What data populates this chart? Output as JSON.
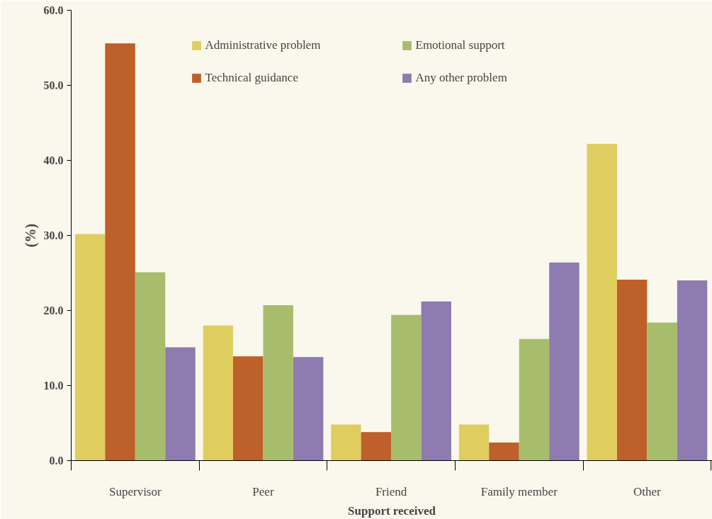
{
  "chart_data": {
    "type": "bar",
    "xlabel": "Support received",
    "ylabel": "(%)",
    "categories": [
      "Supervisor",
      "Peer",
      "Friend",
      "Family member",
      "Other"
    ],
    "series": [
      {
        "name": "Administrative problem",
        "color": "#dfcd5f",
        "values": [
          30.2,
          18.0,
          4.8,
          4.8,
          42.2
        ]
      },
      {
        "name": "Technical guidance",
        "color": "#bd6029",
        "values": [
          55.6,
          13.9,
          3.8,
          2.4,
          24.1
        ]
      },
      {
        "name": "Emotional support",
        "color": "#a7bd6c",
        "values": [
          25.1,
          20.7,
          19.4,
          16.2,
          18.4
        ]
      },
      {
        "name": "Any other problem",
        "color": "#8e7bb0",
        "values": [
          15.1,
          13.8,
          21.2,
          26.4,
          24.0
        ]
      }
    ],
    "ylim": [
      0,
      60
    ],
    "yticks": [
      {
        "value": 0,
        "label": "0.0"
      },
      {
        "value": 10,
        "label": "10.0"
      },
      {
        "value": 20,
        "label": "20.0"
      },
      {
        "value": 30,
        "label": "30.0"
      },
      {
        "value": 40,
        "label": "40.0"
      },
      {
        "value": 50,
        "label": "50.0"
      },
      {
        "value": 60,
        "label": "60.0"
      }
    ],
    "grid": false,
    "legend": "top"
  }
}
